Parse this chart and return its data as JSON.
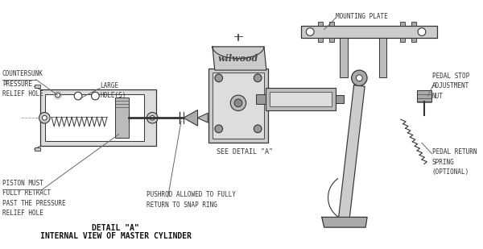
{
  "title1": "DETAIL \"A\"",
  "title2": "INTERNAL VIEW OF MASTER CYLINDER",
  "bg_color": "#ffffff",
  "line_color": "#666666",
  "dark_line": "#333333",
  "text_color": "#333333",
  "labels": {
    "countersunk": "COUNTERSUNK\nPRESSURE\nRELIEF HOLE",
    "large_holes": "LARGE\nHOLE(S)",
    "piston": "PISTON MUST\nFULLY RETRACT\nPAST THE PRESSURE\nRELIEF HOLE",
    "pushrod": "PUSHROD ALLOWED TO FULLY\nRETURN TO SNAP RING",
    "see_detail": "SEE DETAIL \"A\"",
    "mounting": "MOUNTING PLATE",
    "pedal_stop": "PEDAL STOP\nADJUSTMENT\nNUT",
    "pedal_return": "PEDAL RETURN\nSPRING\n(OPTIONAL)"
  }
}
